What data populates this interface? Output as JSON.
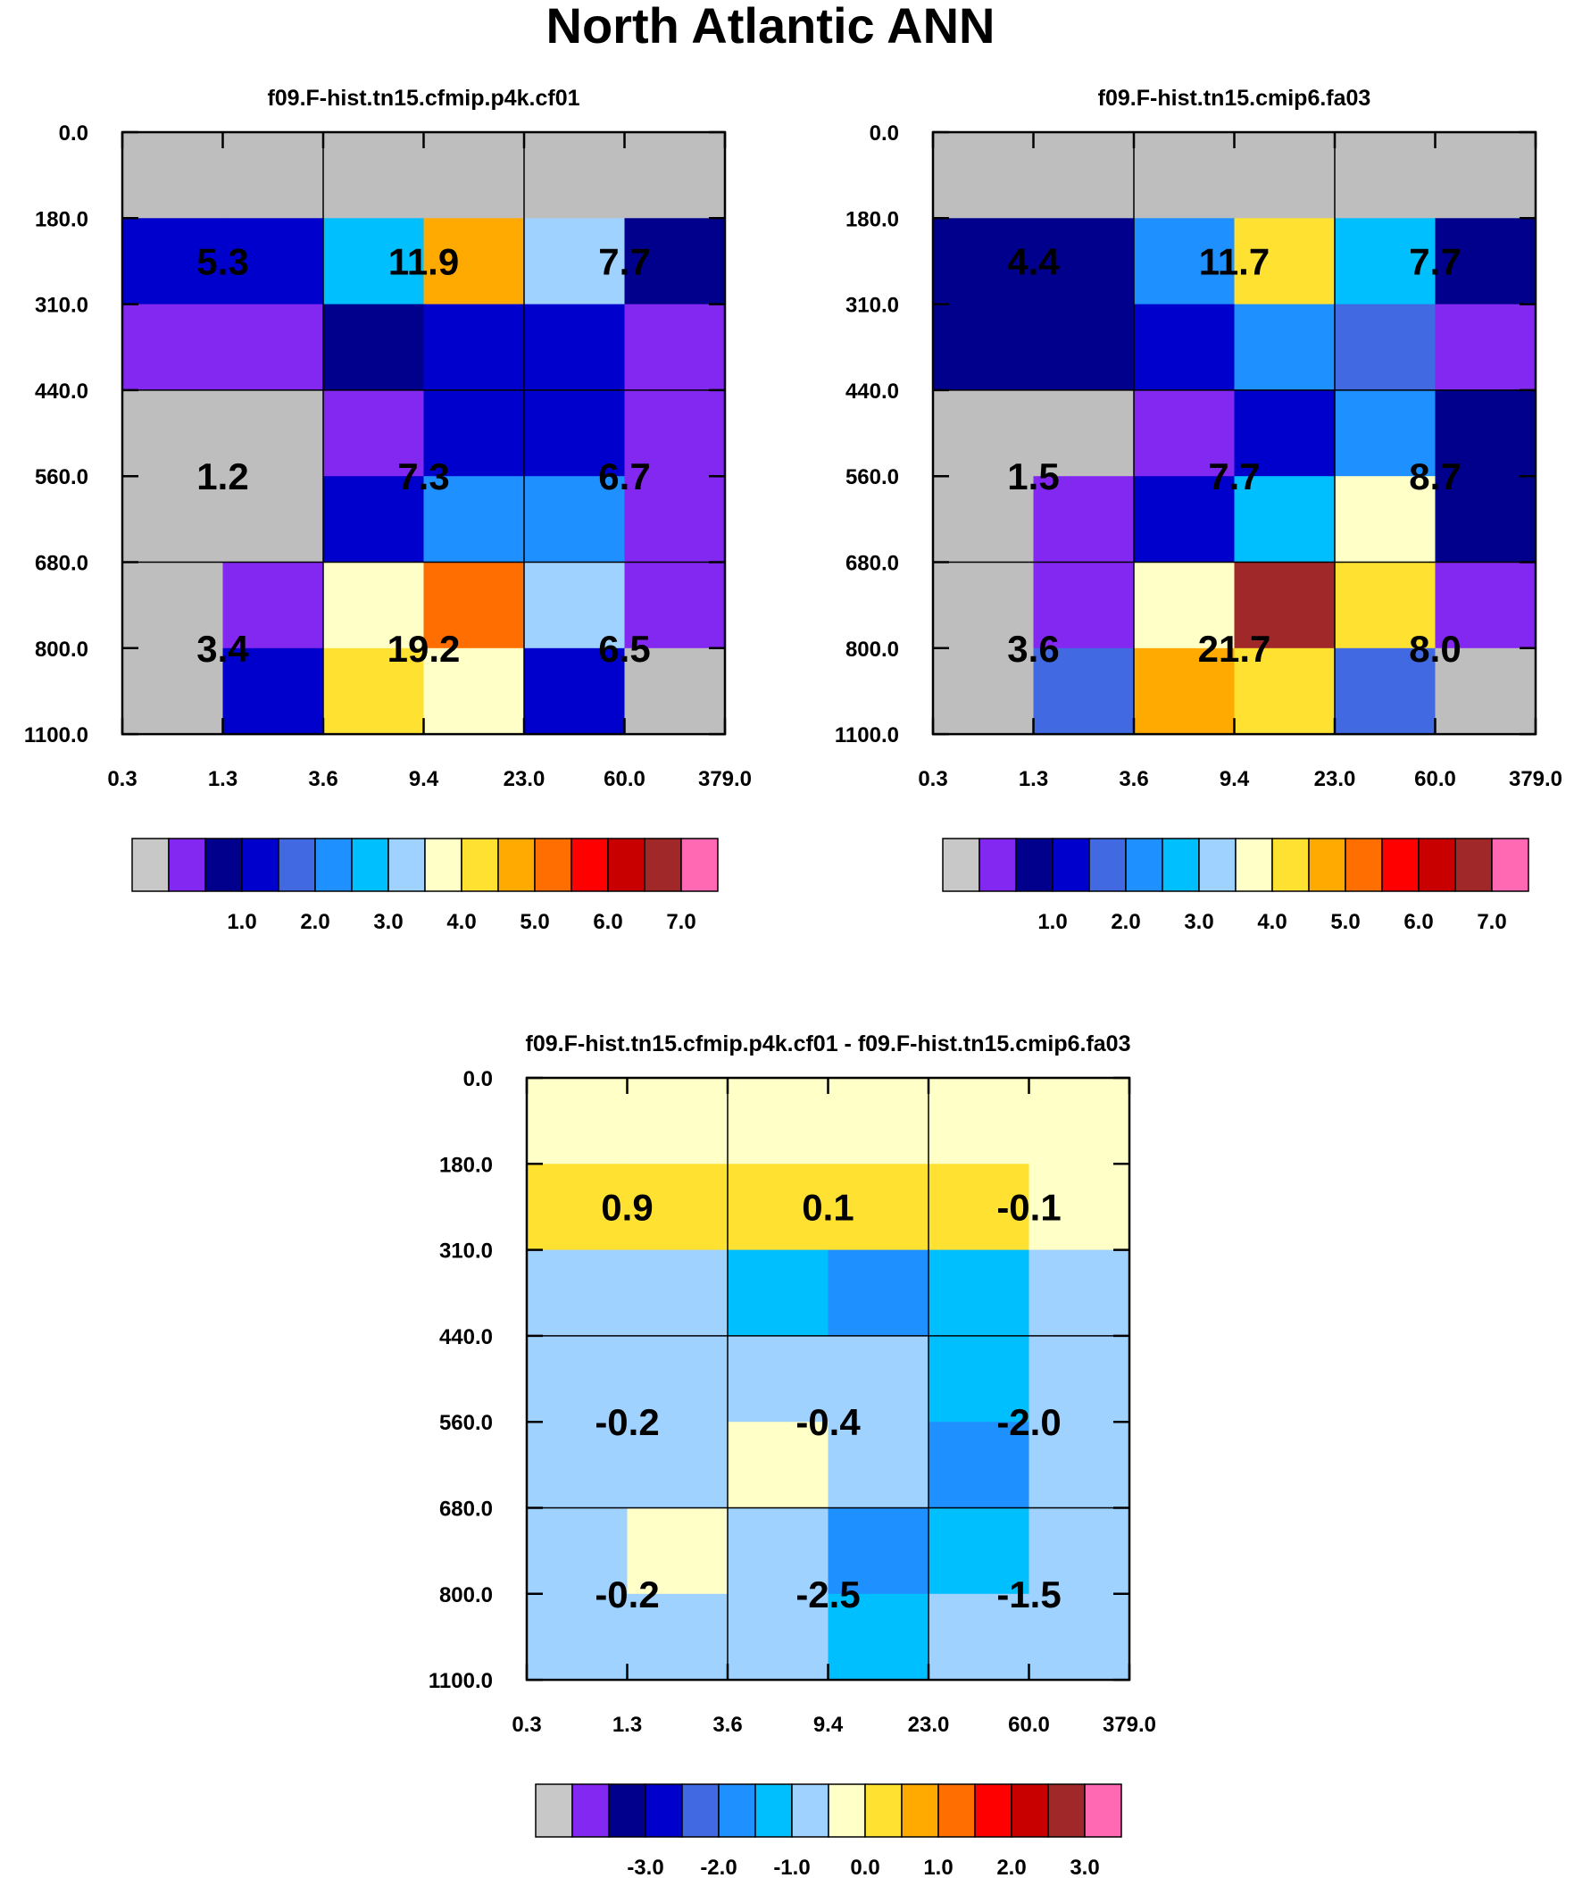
{
  "figure_title": "North Atlantic ANN",
  "chart_data": [
    {
      "type": "heatmap",
      "title": "f09.F-hist.tn15.cfmip.p4k.cf01",
      "x_edges": [
        "0.3",
        "1.3",
        "3.6",
        "9.4",
        "23.0",
        "60.0",
        "379.0"
      ],
      "y_edges": [
        "0.0",
        "180.0",
        "310.0",
        "440.0",
        "560.0",
        "680.0",
        "800.0",
        "1100.0"
      ],
      "cells": [
        [
          0,
          0,
          0,
          0,
          0,
          0
        ],
        [
          3,
          3,
          6,
          10,
          7,
          2
        ],
        [
          1,
          1,
          2,
          3,
          3,
          1
        ],
        [
          0,
          0,
          1,
          3,
          3,
          1
        ],
        [
          0,
          0,
          3,
          5,
          5,
          1
        ],
        [
          0,
          1,
          8,
          11,
          7,
          1
        ],
        [
          0,
          3,
          9,
          8,
          3,
          0
        ]
      ],
      "group_values": [
        [
          "5.3",
          "11.9",
          "7.7"
        ],
        [
          "1.2",
          "7.3",
          "6.7"
        ],
        [
          "3.4",
          "19.2",
          "6.5"
        ]
      ],
      "colorbar": {
        "labels": [
          "1.0",
          "2.0",
          "3.0",
          "4.0",
          "5.0",
          "6.0",
          "7.0"
        ]
      }
    },
    {
      "type": "heatmap",
      "title": "f09.F-hist.tn15.cmip6.fa03",
      "x_edges": [
        "0.3",
        "1.3",
        "3.6",
        "9.4",
        "23.0",
        "60.0",
        "379.0"
      ],
      "y_edges": [
        "0.0",
        "180.0",
        "310.0",
        "440.0",
        "560.0",
        "680.0",
        "800.0",
        "1100.0"
      ],
      "cells": [
        [
          0,
          0,
          0,
          0,
          0,
          0
        ],
        [
          2,
          2,
          5,
          9,
          6,
          2
        ],
        [
          2,
          2,
          3,
          5,
          4,
          1
        ],
        [
          0,
          0,
          1,
          3,
          5,
          2
        ],
        [
          0,
          1,
          3,
          6,
          8,
          2
        ],
        [
          0,
          1,
          8,
          14,
          9,
          1
        ],
        [
          0,
          4,
          10,
          9,
          4,
          0
        ]
      ],
      "group_values": [
        [
          "4.4",
          "11.7",
          "7.7"
        ],
        [
          "1.5",
          "7.7",
          "8.7"
        ],
        [
          "3.6",
          "21.7",
          "8.0"
        ]
      ],
      "colorbar": {
        "labels": [
          "1.0",
          "2.0",
          "3.0",
          "4.0",
          "5.0",
          "6.0",
          "7.0"
        ]
      }
    },
    {
      "type": "heatmap",
      "title": "f09.F-hist.tn15.cfmip.p4k.cf01 - f09.F-hist.tn15.cmip6.fa03",
      "x_edges": [
        "0.3",
        "1.3",
        "3.6",
        "9.4",
        "23.0",
        "60.0",
        "379.0"
      ],
      "y_edges": [
        "0.0",
        "180.0",
        "310.0",
        "440.0",
        "560.0",
        "680.0",
        "800.0",
        "1100.0"
      ],
      "cells": [
        [
          8,
          8,
          8,
          8,
          8,
          8
        ],
        [
          9,
          9,
          9,
          9,
          9,
          8
        ],
        [
          7,
          7,
          6,
          5,
          6,
          7
        ],
        [
          7,
          7,
          7,
          7,
          6,
          7
        ],
        [
          7,
          7,
          8,
          7,
          5,
          7
        ],
        [
          7,
          8,
          7,
          5,
          6,
          7
        ],
        [
          7,
          7,
          7,
          6,
          7,
          7
        ]
      ],
      "group_values": [
        [
          "0.9",
          "0.1",
          "-0.1"
        ],
        [
          "-0.2",
          "-0.4",
          "-2.0"
        ],
        [
          "-0.2",
          "-2.5",
          "-1.5"
        ]
      ],
      "colorbar": {
        "labels": [
          "-3.0",
          "-2.0",
          "-1.0",
          "0.0",
          "1.0",
          "2.0",
          "3.0"
        ]
      }
    }
  ],
  "palette": [
    "#c8c8c8",
    "#8228f0",
    "#00008c",
    "#0000cd",
    "#4169e1",
    "#1e90ff",
    "#00bfff",
    "#a0d2ff",
    "#ffffc8",
    "#ffe132",
    "#ffaa00",
    "#ff6e00",
    "#ff0000",
    "#c80000",
    "#a02828",
    "#ff69b4"
  ],
  "grey_cell_color": "#bebebe"
}
